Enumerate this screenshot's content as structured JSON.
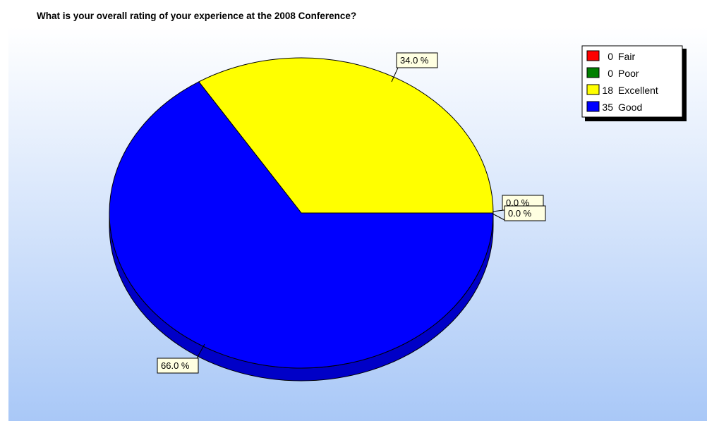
{
  "chart_data": {
    "type": "pie",
    "title": "What is your overall rating of your experience at the 2008 Conference?",
    "series": [
      {
        "name": "",
        "slices": [
          {
            "label": "Fair",
            "value": 0,
            "percent_label": "0.0 %",
            "color": "#ff0000"
          },
          {
            "label": "Poor",
            "value": 0,
            "percent_label": "0.0 %",
            "color": "#008000"
          },
          {
            "label": "Excellent",
            "value": 18,
            "percent_label": "34.0 %",
            "color": "#ffff00"
          },
          {
            "label": "Good",
            "value": 35,
            "percent_label": "66.0 %",
            "color": "#0000ff"
          }
        ]
      }
    ],
    "legend": {
      "position": "top-right",
      "entries": [
        {
          "count": "0",
          "label": "Fair",
          "color": "#ff0000"
        },
        {
          "count": "0",
          "label": "Poor",
          "color": "#008000"
        },
        {
          "count": "18",
          "label": "Excellent",
          "color": "#ffff00"
        },
        {
          "count": "35",
          "label": "Good",
          "color": "#0000ff"
        }
      ]
    },
    "style": {
      "three_d": true,
      "background_gradient": [
        "#ffffff",
        "#a9c8f7"
      ],
      "outline_color": "#000000",
      "label_box_fill": "#ffffe1"
    }
  }
}
